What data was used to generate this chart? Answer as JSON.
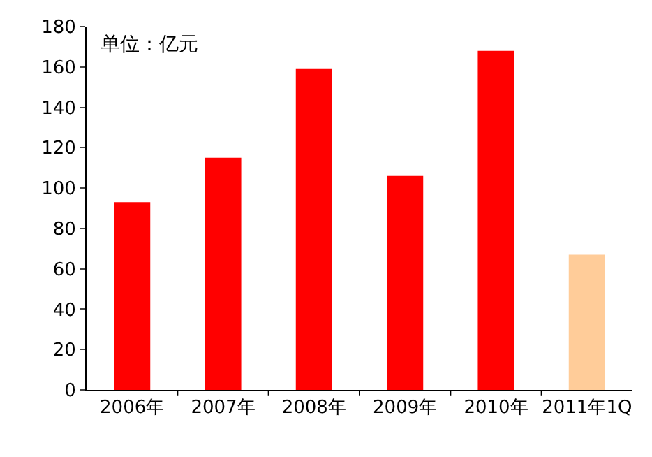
{
  "chart_data": {
    "type": "bar",
    "categories": [
      "2006年",
      "2007年",
      "2008年",
      "2009年",
      "2010年",
      "2011年1Q"
    ],
    "values": [
      93,
      115,
      159,
      106,
      168,
      67
    ],
    "colors": [
      "#ff0000",
      "#ff0000",
      "#ff0000",
      "#ff0000",
      "#ff0000",
      "#ffcc99"
    ],
    "ylim": [
      0,
      180
    ],
    "yticks": [
      0,
      20,
      40,
      60,
      80,
      100,
      120,
      140,
      160,
      180
    ],
    "annotations": [
      "单位：亿元"
    ]
  }
}
